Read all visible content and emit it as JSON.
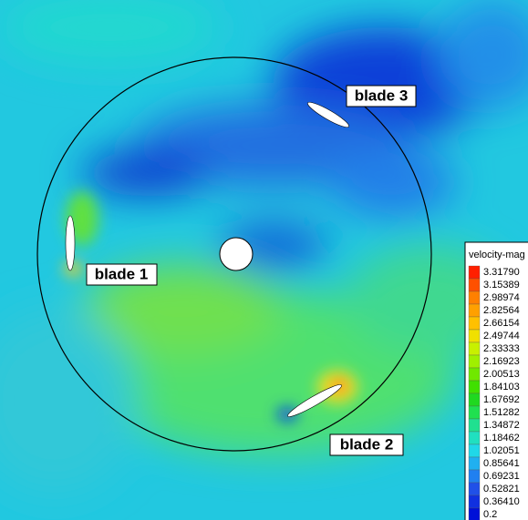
{
  "labels": [
    "blade 3",
    "blade 1",
    "blade 2"
  ],
  "legend": {
    "title": "velocity-mag",
    "levels": [
      "3.31790",
      "3.15389",
      "2.98974",
      "2.82564",
      "2.66154",
      "2.49744",
      "2.33333",
      "2.16923",
      "2.00513",
      "1.84103",
      "1.67692",
      "1.51282",
      "1.34872",
      "1.18462",
      "1.02051",
      "0.85641",
      "0.69231",
      "0.52821",
      "0.36410",
      "0.2"
    ]
  }
}
